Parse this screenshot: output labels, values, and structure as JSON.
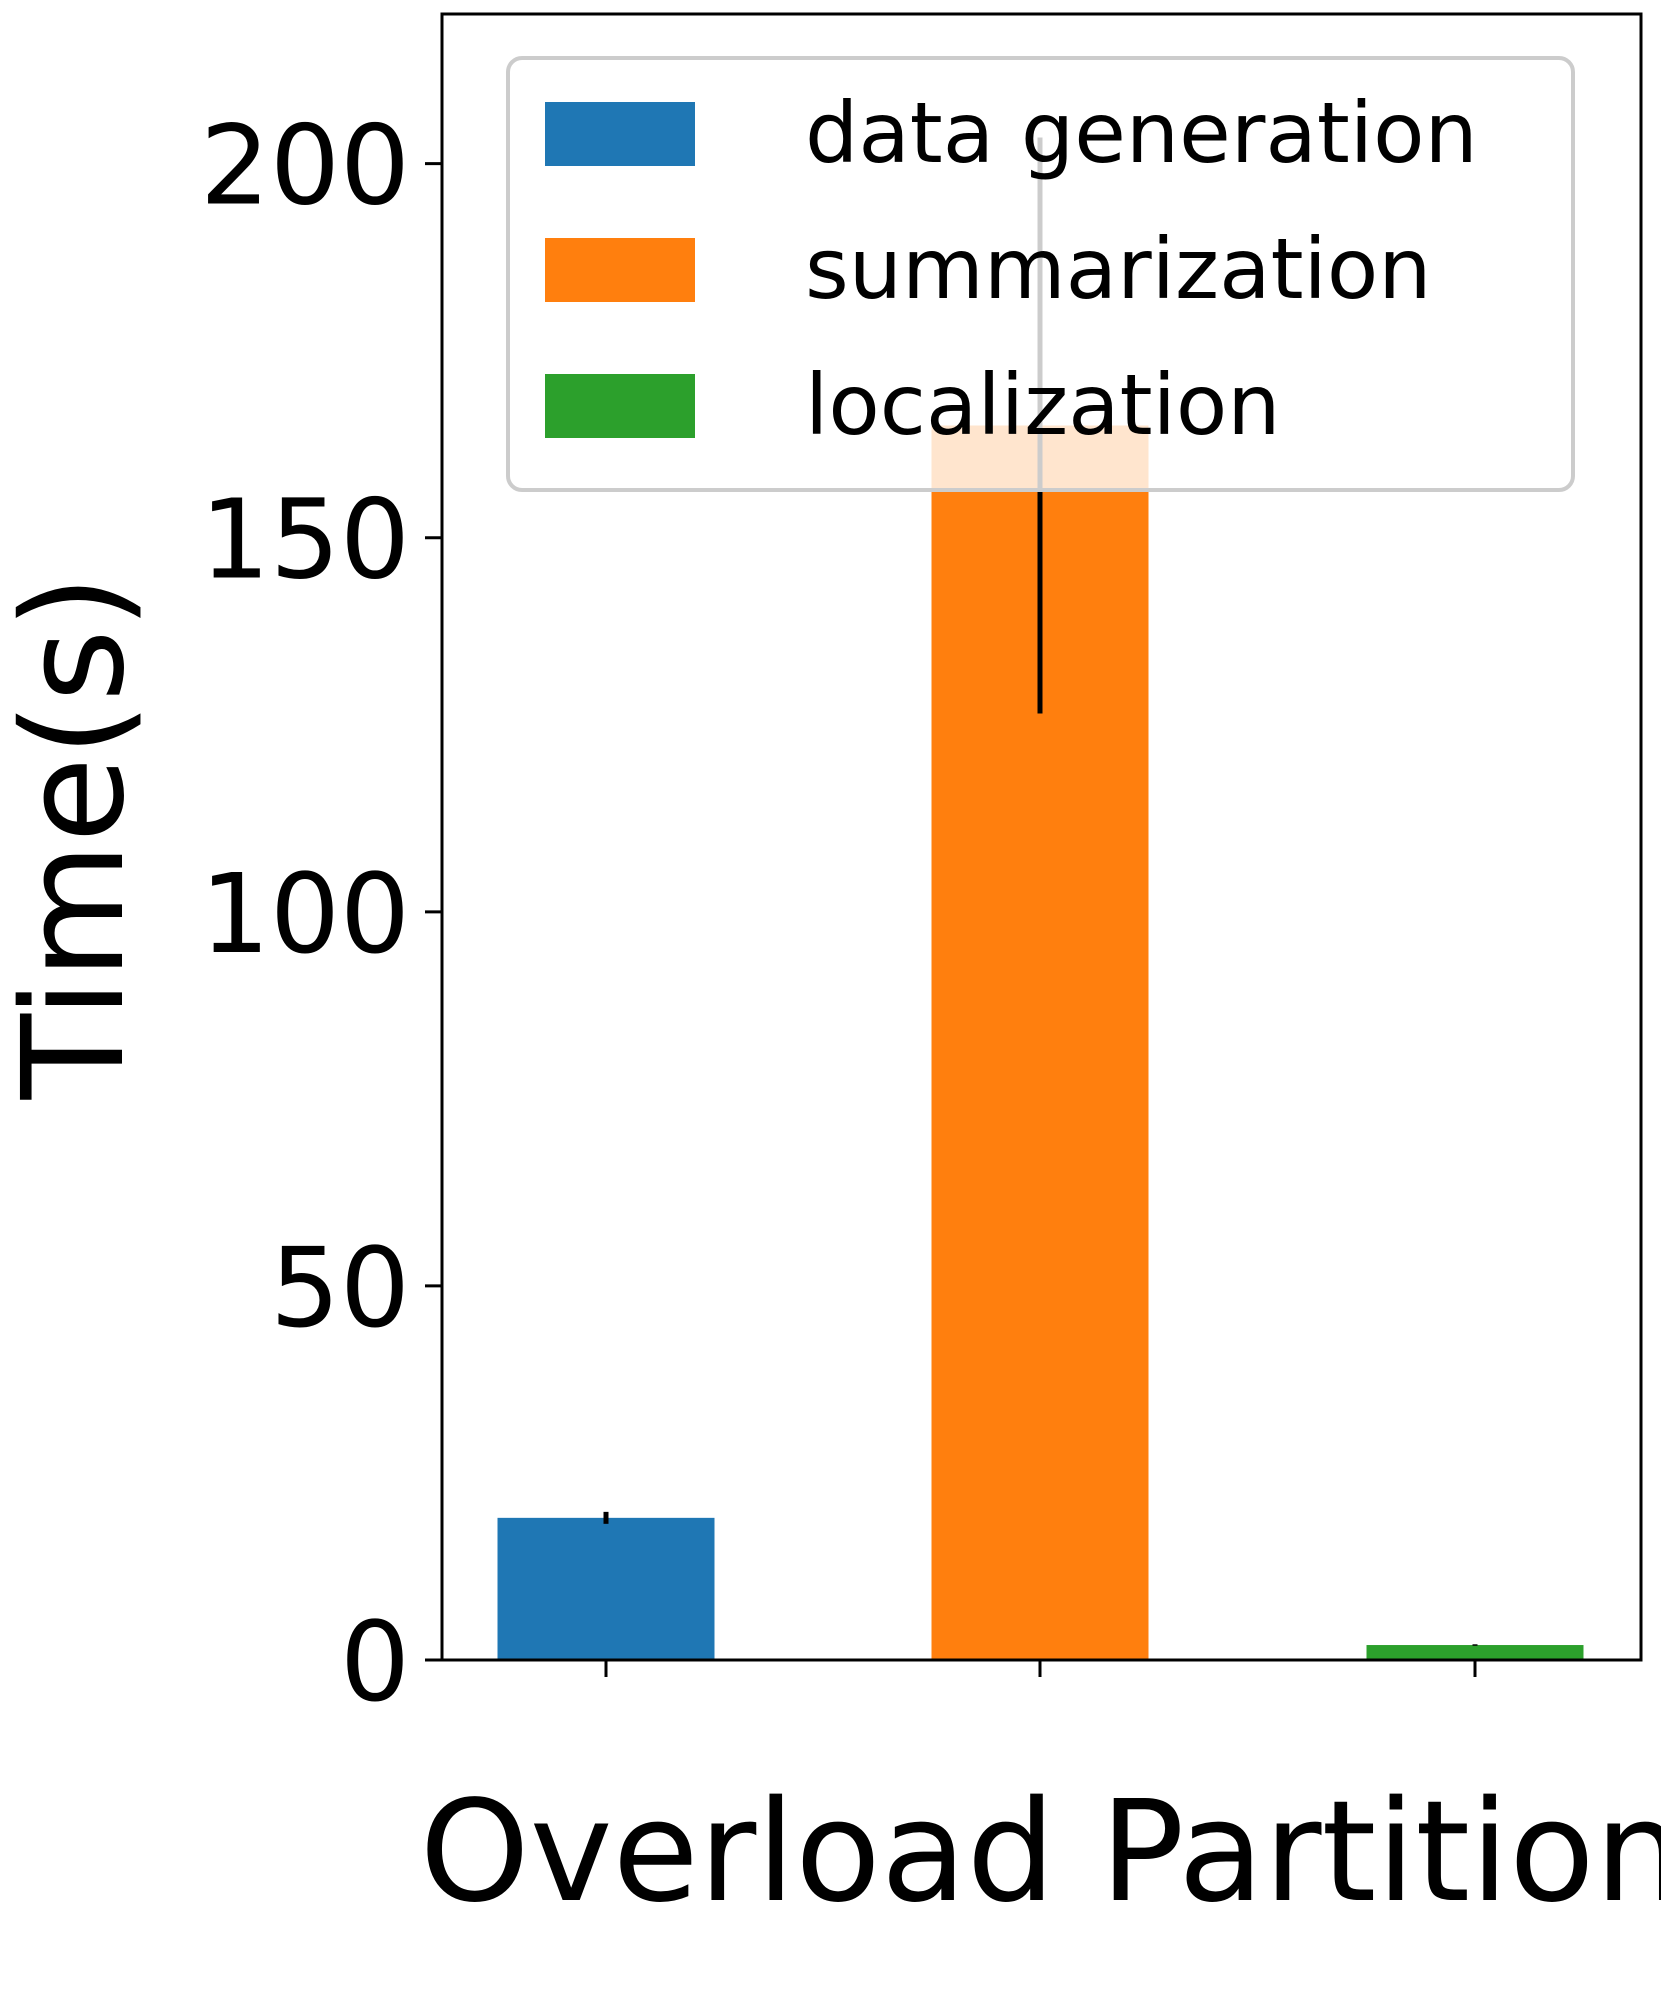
{
  "chart_data": {
    "type": "bar",
    "categories": [
      "data generation",
      "summarization",
      "localization"
    ],
    "values": [
      19,
      165,
      2
    ],
    "errors": [
      0.8,
      38.5,
      0.1
    ],
    "colors": [
      "#1f77b4",
      "#ff7f0e",
      "#2ca02c"
    ],
    "title": "",
    "xlabel": "Overload Partition",
    "ylabel": "Time(s)",
    "ylim": [
      0,
      220
    ],
    "yticks": [
      0,
      50,
      100,
      150,
      200
    ],
    "ytick_labels": [
      "0",
      "50",
      "100",
      "150",
      "200"
    ],
    "grid": false,
    "legend_position": "top-right",
    "legend": [
      "data generation",
      "summarization",
      "localization"
    ]
  }
}
